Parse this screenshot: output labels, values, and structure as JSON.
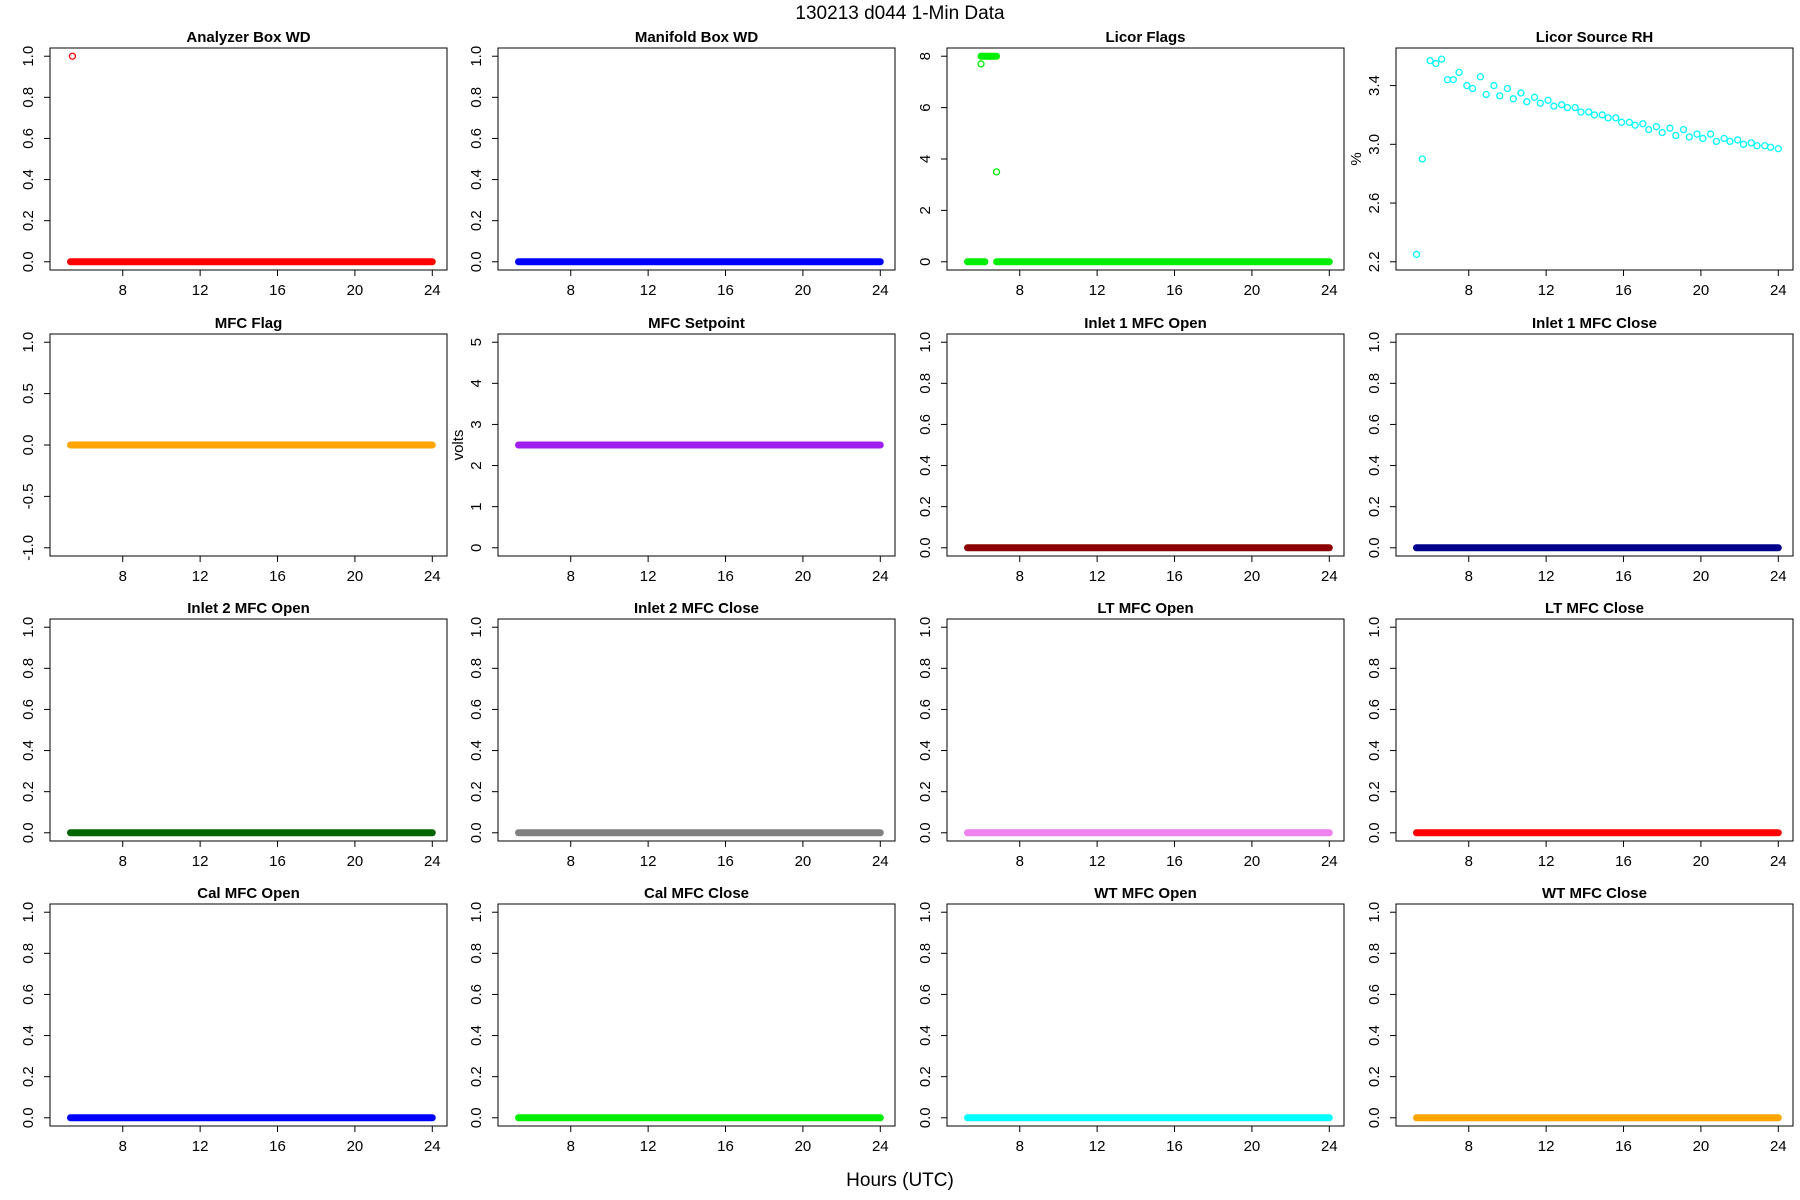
{
  "figure": {
    "title": "130213    d044    1-Min Data",
    "xlabel": "Hours (UTC)"
  },
  "chart_data": [
    {
      "type": "scatter",
      "title": "Analyzer Box WD",
      "ylabel": "",
      "color": "#ff0000",
      "xlim": [
        5,
        24
      ],
      "ylim": [
        0,
        1
      ],
      "yticks": [
        "0.0",
        "0.2",
        "0.4",
        "0.6",
        "0.8",
        "1.0"
      ],
      "ytick_values": [
        0,
        0.2,
        0.4,
        0.6,
        0.8,
        1.0
      ],
      "xticks": [
        8,
        12,
        16,
        20,
        24
      ],
      "series": [
        {
          "kind": "constant",
          "x": [
            5.3,
            24
          ],
          "y": 0
        },
        {
          "kind": "points",
          "x": [
            5.4
          ],
          "y": [
            1
          ]
        }
      ]
    },
    {
      "type": "scatter",
      "title": "Manifold Box WD",
      "ylabel": "",
      "color": "#0000ff",
      "xlim": [
        5,
        24
      ],
      "ylim": [
        0,
        1
      ],
      "yticks": [
        "0.0",
        "0.2",
        "0.4",
        "0.6",
        "0.8",
        "1.0"
      ],
      "ytick_values": [
        0,
        0.2,
        0.4,
        0.6,
        0.8,
        1.0
      ],
      "xticks": [
        8,
        12,
        16,
        20,
        24
      ],
      "series": [
        {
          "kind": "constant",
          "x": [
            5.3,
            24
          ],
          "y": 0
        }
      ]
    },
    {
      "type": "scatter",
      "title": "Licor Flags",
      "ylabel": "",
      "color": "#00ee00",
      "xlim": [
        5,
        24
      ],
      "ylim": [
        0,
        8
      ],
      "yticks": [
        "0",
        "2",
        "4",
        "6",
        "8"
      ],
      "ytick_values": [
        0,
        2,
        4,
        6,
        8
      ],
      "xticks": [
        8,
        12,
        16,
        20,
        24
      ],
      "series": [
        {
          "kind": "constant",
          "x": [
            5.3,
            6.2
          ],
          "y": 0
        },
        {
          "kind": "constant",
          "x": [
            6.8,
            24
          ],
          "y": 0
        },
        {
          "kind": "constant",
          "x": [
            6.0,
            6.8
          ],
          "y": 8
        },
        {
          "kind": "points",
          "x": [
            6.0,
            6.8
          ],
          "y": [
            7.7,
            3.5
          ]
        }
      ]
    },
    {
      "type": "scatter",
      "title": "Licor Source RH",
      "ylabel": "%",
      "color": "#00ffff",
      "xlim": [
        5,
        24
      ],
      "ylim": [
        2.2,
        3.6
      ],
      "yticks": [
        "2.2",
        "2.6",
        "3.0",
        "3.4"
      ],
      "ytick_values": [
        2.2,
        2.6,
        3.0,
        3.4
      ],
      "xticks": [
        8,
        12,
        16,
        20,
        24
      ],
      "series": [
        {
          "kind": "points",
          "x": [
            5.3,
            5.6,
            6.0,
            6.3,
            6.6,
            6.9,
            7.2,
            7.5,
            7.9,
            8.2,
            8.6,
            8.9,
            9.3,
            9.6,
            10.0,
            10.3,
            10.7,
            11.0,
            11.4,
            11.7,
            12.1,
            12.4,
            12.8,
            13.1,
            13.5,
            13.8,
            14.2,
            14.5,
            14.9,
            15.2,
            15.6,
            15.9,
            16.3,
            16.6,
            17.0,
            17.3,
            17.7,
            18.0,
            18.4,
            18.7,
            19.1,
            19.4,
            19.8,
            20.1,
            20.5,
            20.8,
            21.2,
            21.5,
            21.9,
            22.2,
            22.6,
            22.9,
            23.3,
            23.6,
            24.0
          ],
          "y": [
            2.25,
            2.9,
            3.57,
            3.55,
            3.58,
            3.44,
            3.44,
            3.49,
            3.4,
            3.38,
            3.46,
            3.34,
            3.4,
            3.33,
            3.38,
            3.31,
            3.35,
            3.29,
            3.32,
            3.28,
            3.3,
            3.26,
            3.27,
            3.25,
            3.25,
            3.22,
            3.22,
            3.2,
            3.2,
            3.18,
            3.18,
            3.15,
            3.15,
            3.13,
            3.14,
            3.1,
            3.12,
            3.08,
            3.11,
            3.06,
            3.1,
            3.05,
            3.07,
            3.04,
            3.07,
            3.02,
            3.04,
            3.02,
            3.03,
            3.0,
            3.01,
            2.99,
            2.99,
            2.98,
            2.97
          ]
        }
      ]
    },
    {
      "type": "scatter",
      "title": "MFC Flag",
      "ylabel": "",
      "color": "#ffa500",
      "xlim": [
        5,
        24
      ],
      "ylim": [
        -1,
        1
      ],
      "yticks": [
        "-1.0",
        "-0.5",
        "0.0",
        "0.5",
        "1.0"
      ],
      "ytick_values": [
        -1,
        -0.5,
        0,
        0.5,
        1
      ],
      "xticks": [
        8,
        12,
        16,
        20,
        24
      ],
      "series": [
        {
          "kind": "constant",
          "x": [
            5.3,
            24
          ],
          "y": 0
        }
      ]
    },
    {
      "type": "scatter",
      "title": "MFC Setpoint",
      "ylabel": "volts",
      "color": "#a020f0",
      "xlim": [
        5,
        24
      ],
      "ylim": [
        0,
        5
      ],
      "yticks": [
        "0",
        "1",
        "2",
        "3",
        "4",
        "5"
      ],
      "ytick_values": [
        0,
        1,
        2,
        3,
        4,
        5
      ],
      "xticks": [
        8,
        12,
        16,
        20,
        24
      ],
      "series": [
        {
          "kind": "constant",
          "x": [
            5.3,
            24
          ],
          "y": 2.5
        }
      ]
    },
    {
      "type": "scatter",
      "title": "Inlet 1 MFC Open",
      "ylabel": "",
      "color": "#8b0000",
      "xlim": [
        5,
        24
      ],
      "ylim": [
        0,
        1
      ],
      "yticks": [
        "0.0",
        "0.2",
        "0.4",
        "0.6",
        "0.8",
        "1.0"
      ],
      "ytick_values": [
        0,
        0.2,
        0.4,
        0.6,
        0.8,
        1.0
      ],
      "xticks": [
        8,
        12,
        16,
        20,
        24
      ],
      "series": [
        {
          "kind": "constant",
          "x": [
            5.3,
            24
          ],
          "y": 0
        }
      ]
    },
    {
      "type": "scatter",
      "title": "Inlet 1 MFC Close",
      "ylabel": "",
      "color": "#00008b",
      "xlim": [
        5,
        24
      ],
      "ylim": [
        0,
        1
      ],
      "yticks": [
        "0.0",
        "0.2",
        "0.4",
        "0.6",
        "0.8",
        "1.0"
      ],
      "ytick_values": [
        0,
        0.2,
        0.4,
        0.6,
        0.8,
        1.0
      ],
      "xticks": [
        8,
        12,
        16,
        20,
        24
      ],
      "series": [
        {
          "kind": "constant",
          "x": [
            5.3,
            24
          ],
          "y": 0
        }
      ]
    },
    {
      "type": "scatter",
      "title": "Inlet 2 MFC Open",
      "ylabel": "",
      "color": "#006400",
      "xlim": [
        5,
        24
      ],
      "ylim": [
        0,
        1
      ],
      "yticks": [
        "0.0",
        "0.2",
        "0.4",
        "0.6",
        "0.8",
        "1.0"
      ],
      "ytick_values": [
        0,
        0.2,
        0.4,
        0.6,
        0.8,
        1.0
      ],
      "xticks": [
        8,
        12,
        16,
        20,
        24
      ],
      "series": [
        {
          "kind": "constant",
          "x": [
            5.3,
            24
          ],
          "y": 0
        }
      ]
    },
    {
      "type": "scatter",
      "title": "Inlet 2 MFC Close",
      "ylabel": "",
      "color": "#808080",
      "xlim": [
        5,
        24
      ],
      "ylim": [
        0,
        1
      ],
      "yticks": [
        "0.0",
        "0.2",
        "0.4",
        "0.6",
        "0.8",
        "1.0"
      ],
      "ytick_values": [
        0,
        0.2,
        0.4,
        0.6,
        0.8,
        1.0
      ],
      "xticks": [
        8,
        12,
        16,
        20,
        24
      ],
      "series": [
        {
          "kind": "constant",
          "x": [
            5.3,
            24
          ],
          "y": 0
        }
      ]
    },
    {
      "type": "scatter",
      "title": "LT MFC Open",
      "ylabel": "",
      "color": "#ee82ee",
      "xlim": [
        5,
        24
      ],
      "ylim": [
        0,
        1
      ],
      "yticks": [
        "0.0",
        "0.2",
        "0.4",
        "0.6",
        "0.8",
        "1.0"
      ],
      "ytick_values": [
        0,
        0.2,
        0.4,
        0.6,
        0.8,
        1.0
      ],
      "xticks": [
        8,
        12,
        16,
        20,
        24
      ],
      "series": [
        {
          "kind": "constant",
          "x": [
            5.3,
            24
          ],
          "y": 0
        }
      ]
    },
    {
      "type": "scatter",
      "title": "LT MFC Close",
      "ylabel": "",
      "color": "#ff0000",
      "xlim": [
        5,
        24
      ],
      "ylim": [
        0,
        1
      ],
      "yticks": [
        "0.0",
        "0.2",
        "0.4",
        "0.6",
        "0.8",
        "1.0"
      ],
      "ytick_values": [
        0,
        0.2,
        0.4,
        0.6,
        0.8,
        1.0
      ],
      "xticks": [
        8,
        12,
        16,
        20,
        24
      ],
      "series": [
        {
          "kind": "constant",
          "x": [
            5.3,
            24
          ],
          "y": 0
        }
      ]
    },
    {
      "type": "scatter",
      "title": "Cal MFC Open",
      "ylabel": "",
      "color": "#0000ff",
      "xlim": [
        5,
        24
      ],
      "ylim": [
        0,
        1
      ],
      "yticks": [
        "0.0",
        "0.2",
        "0.4",
        "0.6",
        "0.8",
        "1.0"
      ],
      "ytick_values": [
        0,
        0.2,
        0.4,
        0.6,
        0.8,
        1.0
      ],
      "xticks": [
        8,
        12,
        16,
        20,
        24
      ],
      "series": [
        {
          "kind": "constant",
          "x": [
            5.3,
            24
          ],
          "y": 0
        }
      ]
    },
    {
      "type": "scatter",
      "title": "Cal MFC Close",
      "ylabel": "",
      "color": "#00ee00",
      "xlim": [
        5,
        24
      ],
      "ylim": [
        0,
        1
      ],
      "yticks": [
        "0.0",
        "0.2",
        "0.4",
        "0.6",
        "0.8",
        "1.0"
      ],
      "ytick_values": [
        0,
        0.2,
        0.4,
        0.6,
        0.8,
        1.0
      ],
      "xticks": [
        8,
        12,
        16,
        20,
        24
      ],
      "series": [
        {
          "kind": "constant",
          "x": [
            5.3,
            24
          ],
          "y": 0
        }
      ]
    },
    {
      "type": "scatter",
      "title": "WT MFC Open",
      "ylabel": "",
      "color": "#00ffff",
      "xlim": [
        5,
        24
      ],
      "ylim": [
        0,
        1
      ],
      "yticks": [
        "0.0",
        "0.2",
        "0.4",
        "0.6",
        "0.8",
        "1.0"
      ],
      "ytick_values": [
        0,
        0.2,
        0.4,
        0.6,
        0.8,
        1.0
      ],
      "xticks": [
        8,
        12,
        16,
        20,
        24
      ],
      "series": [
        {
          "kind": "constant",
          "x": [
            5.3,
            24
          ],
          "y": 0
        }
      ]
    },
    {
      "type": "scatter",
      "title": "WT MFC Close",
      "ylabel": "",
      "color": "#ffa500",
      "xlim": [
        5,
        24
      ],
      "ylim": [
        0,
        1
      ],
      "yticks": [
        "0.0",
        "0.2",
        "0.4",
        "0.6",
        "0.8",
        "1.0"
      ],
      "ytick_values": [
        0,
        0.2,
        0.4,
        0.6,
        0.8,
        1.0
      ],
      "xticks": [
        8,
        12,
        16,
        20,
        24
      ],
      "series": [
        {
          "kind": "constant",
          "x": [
            5.3,
            24
          ],
          "y": 0
        }
      ]
    }
  ]
}
